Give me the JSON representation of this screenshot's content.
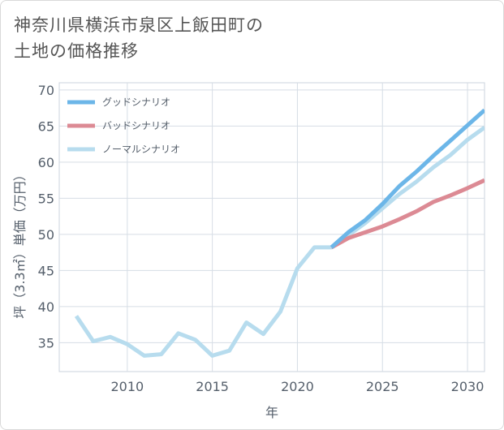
{
  "title_line1": "神奈川県横浜市泉区上飯田町の",
  "title_line2": "土地の価格推移",
  "chart_data": {
    "type": "line",
    "xlabel": "年",
    "ylabel": "坪（3.3㎡）単価（万円）",
    "xlim": [
      2006,
      2031
    ],
    "ylim": [
      31,
      71
    ],
    "x_ticks": [
      2010,
      2015,
      2020,
      2025,
      2030
    ],
    "y_ticks": [
      35,
      40,
      45,
      50,
      55,
      60,
      65,
      70
    ],
    "grid": true,
    "legend_position": "top-left",
    "series": [
      {
        "name": "グッドシナリオ",
        "color": "#6cb6e8",
        "x": [
          2022,
          2023,
          2024,
          2025,
          2026,
          2027,
          2028,
          2029,
          2030,
          2031
        ],
        "y": [
          48.2,
          50.3,
          52.0,
          54.2,
          56.7,
          58.7,
          60.9,
          63.0,
          65.1,
          67.2
        ]
      },
      {
        "name": "バッドシナリオ",
        "color": "#dc8a94",
        "x": [
          2022,
          2023,
          2024,
          2025,
          2026,
          2027,
          2028,
          2029,
          2030,
          2031
        ],
        "y": [
          48.2,
          49.5,
          50.3,
          51.1,
          52.1,
          53.2,
          54.5,
          55.4,
          56.4,
          57.5
        ]
      },
      {
        "name": "ノーマルシナリオ",
        "color": "#b7dcee",
        "x": [
          2007,
          2008,
          2009,
          2010,
          2011,
          2012,
          2013,
          2014,
          2015,
          2016,
          2017,
          2018,
          2019,
          2020,
          2021,
          2022,
          2023,
          2024,
          2025,
          2026,
          2027,
          2028,
          2029,
          2030,
          2031
        ],
        "y": [
          38.7,
          35.2,
          35.8,
          34.8,
          33.2,
          33.4,
          36.3,
          35.4,
          33.2,
          33.9,
          37.8,
          36.2,
          39.3,
          45.3,
          48.2,
          48.2,
          49.9,
          51.6,
          53.6,
          55.6,
          57.3,
          59.3,
          61.0,
          63.1,
          64.8
        ]
      }
    ]
  }
}
